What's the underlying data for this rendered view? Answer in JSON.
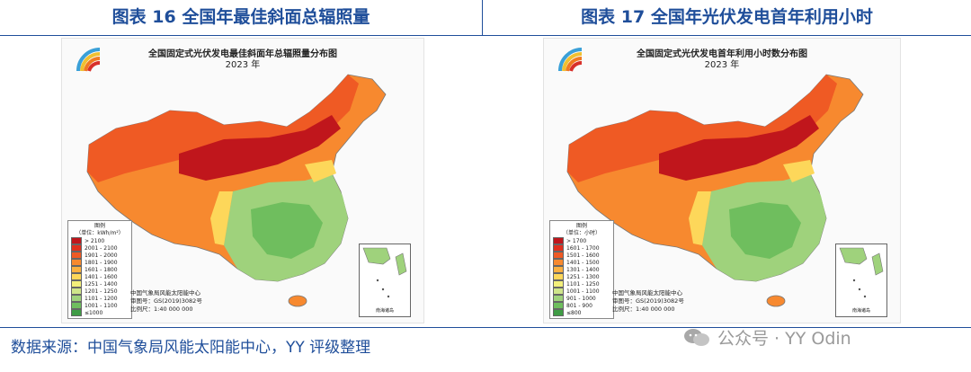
{
  "left": {
    "figure_title": "图表 16 全国年最佳斜面总辐照量",
    "map_title": "全国固定式光伏发电最佳斜面年总辐照量分布图",
    "map_year": "2023 年",
    "legend_title": "图例",
    "legend_unit": "（单位：kWh/m²）",
    "legend_items": [
      {
        "label": "> 2100",
        "color": "#c0161c"
      },
      {
        "label": "2001 - 2100",
        "color": "#e0301e"
      },
      {
        "label": "1901 - 2000",
        "color": "#ef5a24"
      },
      {
        "label": "1801 - 1900",
        "color": "#f7892f"
      },
      {
        "label": "1601 - 1800",
        "color": "#fbb040"
      },
      {
        "label": "1401 - 1600",
        "color": "#fdd75a"
      },
      {
        "label": "1251 - 1400",
        "color": "#f3ef7a"
      },
      {
        "label": "1201 - 1250",
        "color": "#cfe58a"
      },
      {
        "label": "1101 - 1200",
        "color": "#9fd27c"
      },
      {
        "label": "1001 - 1100",
        "color": "#6fbe5e"
      },
      {
        "label": "≤1000",
        "color": "#3f9c45"
      }
    ],
    "credit_org": "中国气象局风能太阳能中心",
    "credit_review": "审图号：GS(2019)3082号",
    "credit_scale": "比例尺：1:40 000 000",
    "inset_caption": "南海诸岛"
  },
  "right": {
    "figure_title": "图表 17 全国年光伏发电首年利用小时",
    "map_title": "全国固定式光伏发电首年利用小时数分布图",
    "map_year": "2023 年",
    "legend_title": "图例",
    "legend_unit": "（单位：小时）",
    "legend_items": [
      {
        "label": "> 1700",
        "color": "#c0161c"
      },
      {
        "label": "1601 - 1700",
        "color": "#e0301e"
      },
      {
        "label": "1501 - 1600",
        "color": "#ef5a24"
      },
      {
        "label": "1401 - 1500",
        "color": "#f7892f"
      },
      {
        "label": "1301 - 1400",
        "color": "#fbb040"
      },
      {
        "label": "1251 - 1300",
        "color": "#fdd75a"
      },
      {
        "label": "1101 - 1250",
        "color": "#f3ef7a"
      },
      {
        "label": "1001 - 1100",
        "color": "#cfe58a"
      },
      {
        "label": "901 - 1000",
        "color": "#9fd27c"
      },
      {
        "label": "801 - 900",
        "color": "#6fbe5e"
      },
      {
        "label": "≤800",
        "color": "#3f9c45"
      }
    ],
    "credit_org": "中国气象局风能太阳能中心",
    "credit_review": "审图号：GS(2019)3082号",
    "credit_scale": "比例尺：1:40 000 000",
    "inset_caption": "南海诸岛"
  },
  "source": "数据来源：中国气象局风能太阳能中心，YY 评级整理",
  "watermark": "公众号 · YY Odin",
  "colors": {
    "title_blue": "#1f4e9a",
    "deep_red": "#c0161c",
    "orange": "#f7892f",
    "yellow": "#f3ef7a",
    "green": "#6fbe5e"
  }
}
